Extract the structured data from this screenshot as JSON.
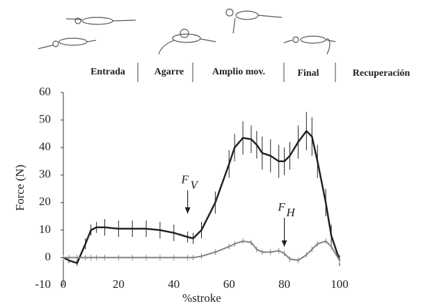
{
  "chart_data": {
    "type": "line",
    "ylabel": "Force (N)",
    "xlabel": "%stroke",
    "phases": [
      "Entrada",
      "Agarre",
      "Amplio mov.",
      "Final",
      "Recuperación"
    ],
    "x": [
      0,
      2,
      5,
      8,
      10,
      12,
      15,
      20,
      25,
      30,
      35,
      40,
      45,
      47,
      50,
      55,
      60,
      62,
      65,
      68,
      70,
      72,
      75,
      78,
      80,
      82,
      85,
      88,
      90,
      92,
      95,
      97,
      100
    ],
    "series": [
      {
        "color": "#222222",
        "values": [
          0,
          -1,
          -2,
          5,
          10,
          11,
          11,
          10.5,
          10.5,
          10.5,
          10,
          9,
          7.5,
          7,
          10,
          20,
          34,
          40,
          43.5,
          43,
          41,
          38,
          37,
          35,
          35,
          37,
          42,
          46,
          44,
          35,
          20,
          8,
          -1
        ],
        "errors": [
          1,
          1,
          1,
          2,
          2,
          2,
          3,
          3,
          3,
          3,
          3,
          3,
          2,
          2,
          3,
          4,
          5,
          5,
          6,
          5,
          5,
          6,
          6,
          6,
          5,
          5,
          6,
          7,
          7,
          6,
          5,
          4,
          2
        ]
      },
      {
        "color": "#808080",
        "values": [
          0,
          0,
          0,
          0,
          0,
          0,
          0,
          0,
          0,
          0,
          0,
          0,
          0,
          0,
          0.5,
          2,
          4,
          5,
          6,
          5.5,
          3,
          2,
          2,
          2.5,
          1.5,
          -0.5,
          -1,
          1,
          3,
          5,
          6,
          4,
          -1
        ],
        "errors": [
          1,
          1,
          1,
          1,
          1,
          1,
          1,
          1,
          1,
          1,
          1,
          1,
          1,
          1,
          1,
          1,
          1,
          1,
          1,
          1,
          1,
          1,
          1,
          1,
          1,
          1,
          1,
          1,
          1,
          1,
          1,
          1,
          1
        ]
      }
    ],
    "annotations": [
      {
        "text": "F",
        "sub": "V",
        "x": 45,
        "y": 28,
        "arrow_y": 16
      },
      {
        "text": "F",
        "sub": "H",
        "x": 80,
        "y": 18,
        "arrow_y": 4
      }
    ],
    "xlim": [
      0,
      100
    ],
    "xticks": [
      0,
      20,
      40,
      60,
      80,
      100
    ],
    "ylim": [
      -10,
      60
    ],
    "yticks": [
      -10,
      0,
      10,
      20,
      30,
      40,
      50,
      60
    ]
  }
}
